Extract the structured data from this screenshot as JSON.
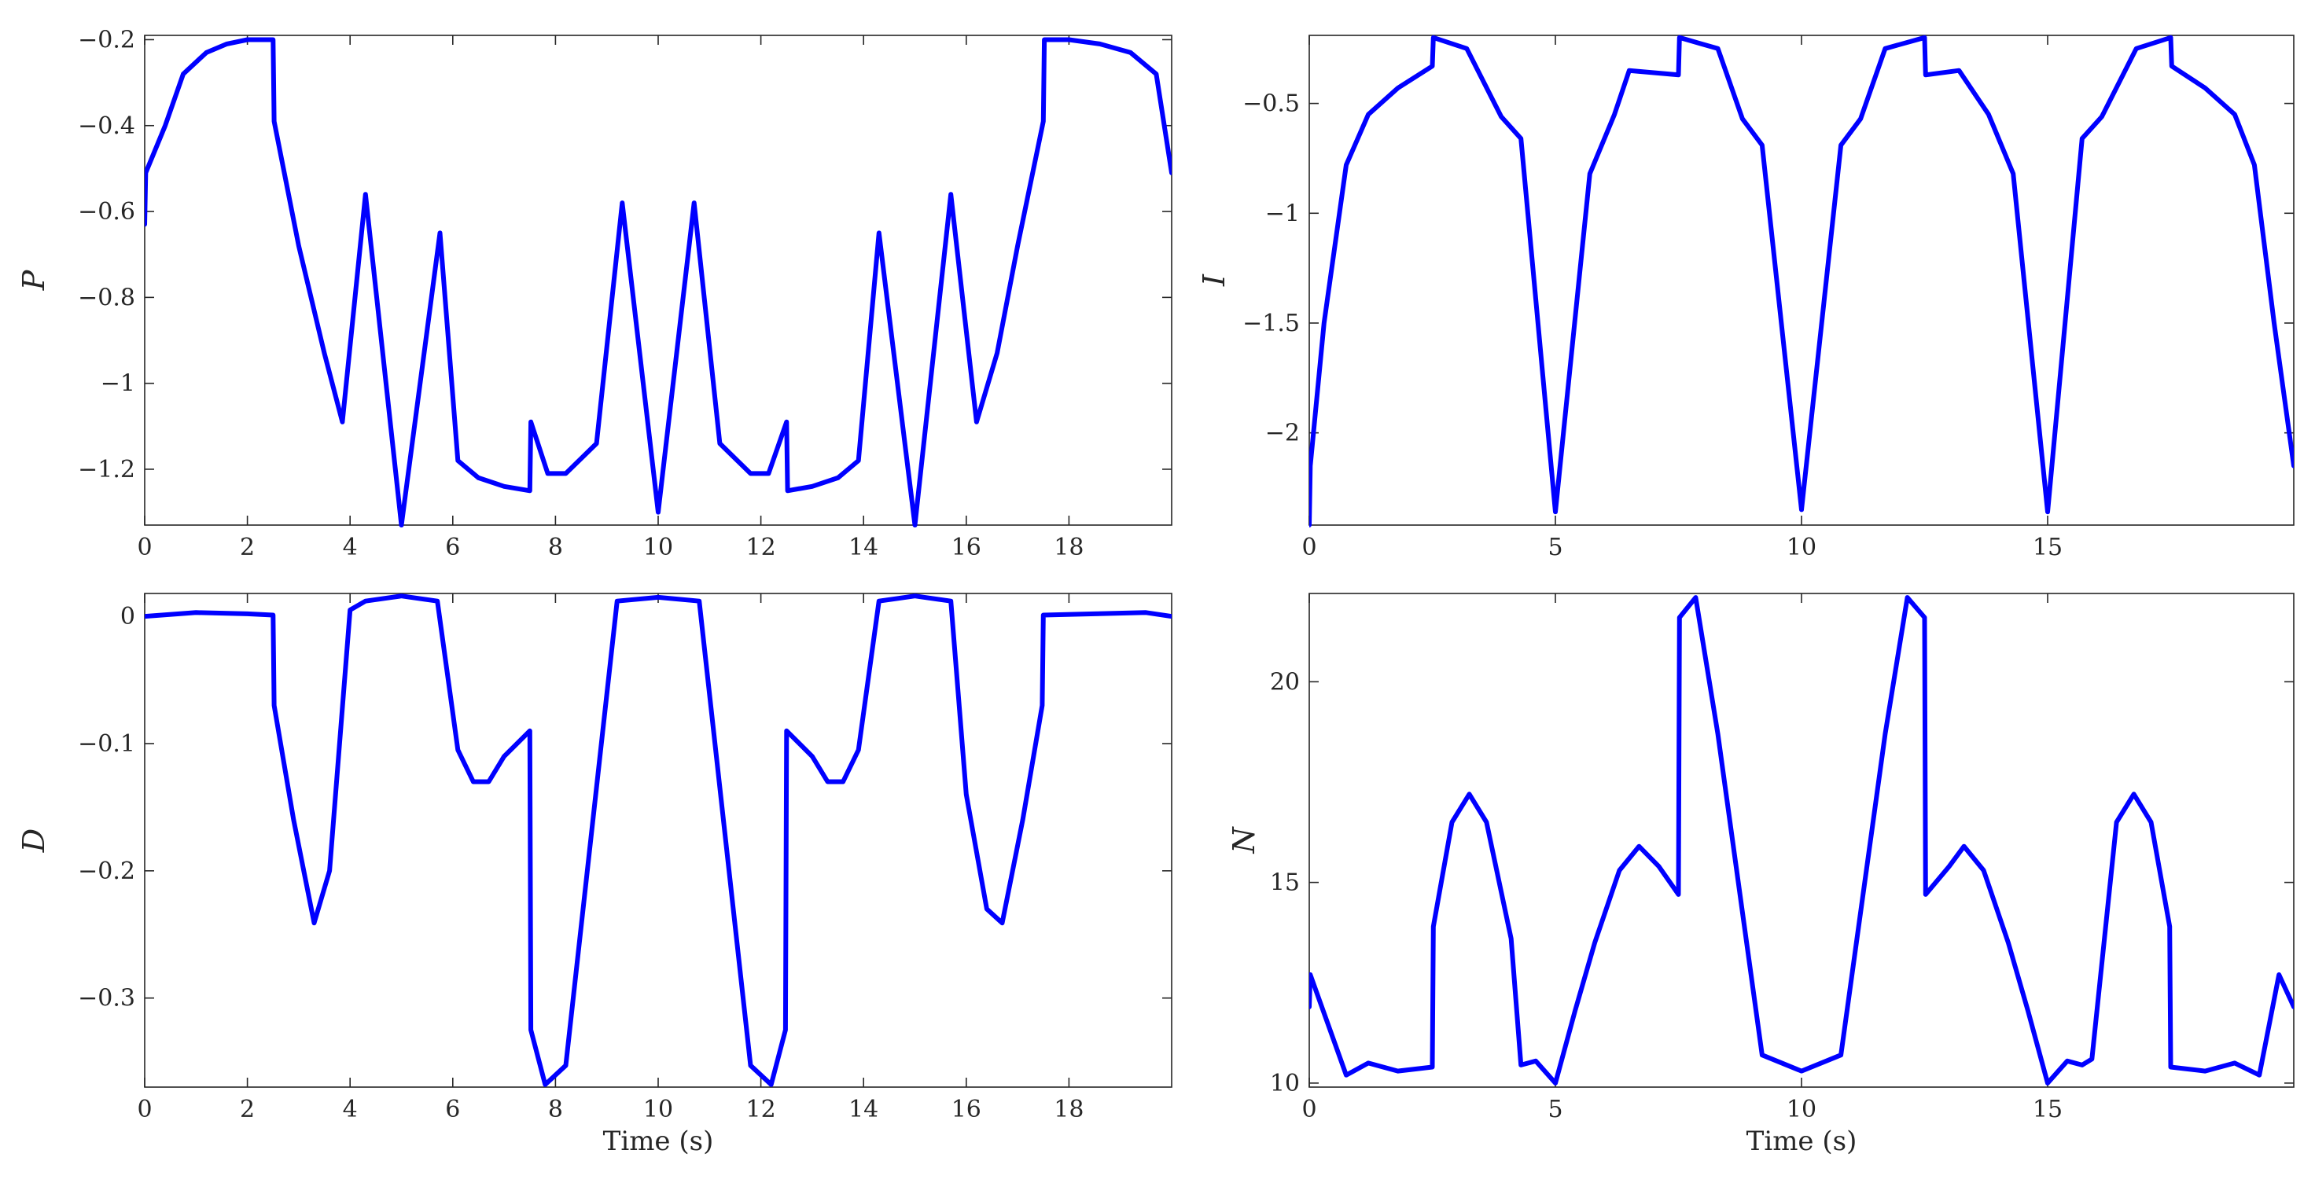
{
  "colors": {
    "series": "#0000ff",
    "axes": "#262626"
  },
  "chart_data": [
    {
      "type": "line",
      "title": "",
      "xlabel": "",
      "ylabel": "P",
      "xlim": [
        0,
        20
      ],
      "ylim": [
        -1.33,
        -0.19
      ],
      "xticks": [
        0,
        2,
        4,
        6,
        8,
        10,
        12,
        14,
        16,
        18
      ],
      "xtick_labels": [
        "0",
        "2",
        "4",
        "6",
        "8",
        "10",
        "12",
        "14",
        "16",
        "18"
      ],
      "yticks": [
        -0.2,
        -0.4,
        -0.6,
        -0.8,
        -1.0,
        -1.2
      ],
      "ytick_labels": [
        "−0.2",
        "−0.4",
        "−0.6",
        "−0.8",
        "−1",
        "−1.2"
      ],
      "grid": false,
      "series": [
        {
          "x": [
            0,
            0.02,
            0.4,
            0.75,
            1.2,
            1.6,
            2.0,
            2.5,
            2.52,
            3.0,
            3.5,
            3.85,
            4.3,
            5.0,
            5.75,
            6.1,
            6.5,
            7.0,
            7.5,
            7.52,
            7.85,
            8.2,
            8.8,
            9.3,
            10.0,
            10.7,
            11.2,
            11.8,
            12.15,
            12.5,
            12.52,
            13.0,
            13.5,
            13.9,
            14.3,
            15.0,
            15.7,
            16.2,
            16.6,
            17.0,
            17.5,
            17.52,
            18.0,
            18.6,
            19.2,
            19.7,
            20.0
          ],
          "y": [
            -0.63,
            -0.51,
            -0.4,
            -0.28,
            -0.23,
            -0.21,
            -0.2,
            -0.2,
            -0.39,
            -0.68,
            -0.93,
            -1.09,
            -0.56,
            -1.33,
            -0.65,
            -1.18,
            -1.22,
            -1.24,
            -1.25,
            -1.09,
            -1.21,
            -1.21,
            -1.14,
            -0.58,
            -1.3,
            -0.58,
            -1.14,
            -1.21,
            -1.21,
            -1.09,
            -1.25,
            -1.24,
            -1.22,
            -1.18,
            -0.65,
            -1.33,
            -0.56,
            -1.09,
            -0.93,
            -0.68,
            -0.39,
            -0.2,
            -0.2,
            -0.21,
            -0.23,
            -0.28,
            -0.51
          ]
        }
      ]
    },
    {
      "type": "line",
      "title": "",
      "xlabel": "",
      "ylabel": "I",
      "xlim": [
        0,
        20
      ],
      "ylim": [
        -2.42,
        -0.19
      ],
      "xticks": [
        0,
        5,
        10,
        15
      ],
      "xtick_labels": [
        "0",
        "5",
        "10",
        "15"
      ],
      "yticks": [
        -0.5,
        -1.0,
        -1.5,
        -2.0
      ],
      "ytick_labels": [
        "−0.5",
        "−1",
        "−1.5",
        "−2"
      ],
      "grid": false,
      "series": [
        {
          "x": [
            0,
            0.02,
            0.3,
            0.75,
            1.2,
            1.8,
            2.5,
            2.52,
            3.2,
            3.9,
            4.3,
            5.0,
            5.7,
            6.2,
            6.5,
            7.5,
            7.52,
            8.3,
            8.8,
            9.2,
            10.0,
            10.8,
            11.2,
            11.7,
            12.5,
            12.52,
            13.2,
            13.8,
            14.3,
            15.0,
            15.7,
            16.1,
            16.8,
            17.5,
            17.52,
            18.2,
            18.8,
            19.2,
            19.6,
            20.0
          ],
          "y": [
            -2.42,
            -2.15,
            -1.5,
            -0.78,
            -0.55,
            -0.43,
            -0.33,
            -0.2,
            -0.25,
            -0.56,
            -0.66,
            -2.36,
            -0.82,
            -0.55,
            -0.35,
            -0.37,
            -0.2,
            -0.25,
            -0.57,
            -0.69,
            -2.35,
            -0.69,
            -0.57,
            -0.25,
            -0.2,
            -0.37,
            -0.35,
            -0.55,
            -0.82,
            -2.36,
            -0.66,
            -0.56,
            -0.25,
            -0.2,
            -0.33,
            -0.43,
            -0.55,
            -0.78,
            -1.5,
            -2.15
          ]
        }
      ]
    },
    {
      "type": "line",
      "title": "",
      "xlabel": "Time (s)",
      "ylabel": "D",
      "xlim": [
        0,
        20
      ],
      "ylim": [
        -0.37,
        0.018
      ],
      "xticks": [
        0,
        2,
        4,
        6,
        8,
        10,
        12,
        14,
        16,
        18
      ],
      "xtick_labels": [
        "0",
        "2",
        "4",
        "6",
        "8",
        "10",
        "12",
        "14",
        "16",
        "18"
      ],
      "yticks": [
        0,
        -0.1,
        -0.2,
        -0.3
      ],
      "ytick_labels": [
        "0",
        "−0.1",
        "−0.2",
        "−0.3"
      ],
      "grid": false,
      "series": [
        {
          "x": [
            0,
            1.0,
            2.0,
            2.5,
            2.52,
            2.9,
            3.3,
            3.6,
            4.0,
            4.3,
            5.0,
            5.7,
            6.1,
            6.4,
            6.7,
            7.0,
            7.5,
            7.52,
            7.8,
            8.2,
            9.2,
            10.0,
            10.8,
            11.8,
            12.2,
            12.48,
            12.5,
            13.0,
            13.3,
            13.6,
            13.9,
            14.3,
            15.0,
            15.7,
            16.0,
            16.4,
            16.7,
            17.1,
            17.48,
            17.5,
            18.5,
            19.5,
            20.0
          ],
          "y": [
            0.0,
            0.003,
            0.002,
            0.001,
            -0.07,
            -0.16,
            -0.241,
            -0.2,
            0.005,
            0.012,
            0.016,
            0.012,
            -0.105,
            -0.13,
            -0.13,
            -0.11,
            -0.09,
            -0.325,
            -0.368,
            -0.353,
            0.012,
            0.015,
            0.012,
            -0.353,
            -0.368,
            -0.325,
            -0.09,
            -0.11,
            -0.13,
            -0.13,
            -0.105,
            0.012,
            0.016,
            0.012,
            -0.14,
            -0.23,
            -0.241,
            -0.16,
            -0.07,
            0.001,
            0.002,
            0.003,
            0.0
          ]
        }
      ]
    },
    {
      "type": "line",
      "title": "",
      "xlabel": "Time (s)",
      "ylabel": "N",
      "xlim": [
        0,
        20
      ],
      "ylim": [
        9.9,
        22.2
      ],
      "xticks": [
        0,
        5,
        10,
        15
      ],
      "xtick_labels": [
        "0",
        "5",
        "10",
        "15"
      ],
      "yticks": [
        10,
        15,
        20
      ],
      "ytick_labels": [
        "10",
        "15",
        "20"
      ],
      "grid": false,
      "series": [
        {
          "x": [
            0,
            0.02,
            0.75,
            1.2,
            1.8,
            2.5,
            2.52,
            2.9,
            3.25,
            3.6,
            4.1,
            4.3,
            4.6,
            5.0,
            5.4,
            5.8,
            6.3,
            6.7,
            7.1,
            7.5,
            7.52,
            7.85,
            8.3,
            9.2,
            10.0,
            10.8,
            11.7,
            12.15,
            12.5,
            12.52,
            13.0,
            13.3,
            13.7,
            14.2,
            14.6,
            15.0,
            15.4,
            15.7,
            15.9,
            16.4,
            16.75,
            17.1,
            17.48,
            17.5,
            18.2,
            18.8,
            19.3,
            19.7,
            20.0
          ],
          "y": [
            11.9,
            12.7,
            10.2,
            10.5,
            10.3,
            10.4,
            13.9,
            16.5,
            17.2,
            16.5,
            13.6,
            10.45,
            10.55,
            10.0,
            11.8,
            13.5,
            15.3,
            15.9,
            15.4,
            14.7,
            21.6,
            22.1,
            18.7,
            10.7,
            10.3,
            10.7,
            18.7,
            22.1,
            21.6,
            14.7,
            15.4,
            15.9,
            15.3,
            13.5,
            11.8,
            10.0,
            10.55,
            10.45,
            10.6,
            16.5,
            17.2,
            16.5,
            13.9,
            10.4,
            10.3,
            10.5,
            10.2,
            12.7,
            11.9
          ]
        }
      ]
    }
  ]
}
